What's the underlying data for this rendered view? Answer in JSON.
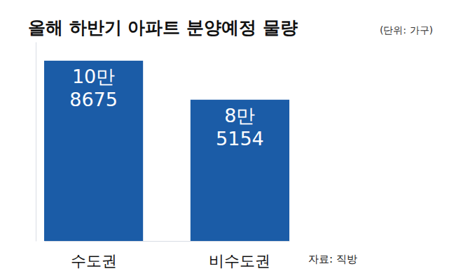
{
  "chart_data": {
    "type": "bar",
    "title": "올해 하반기 아파트 분양예정 물량",
    "subtitle": "(단위: 가구)",
    "source": "자료: 직방",
    "categories": [
      "수도권",
      "비수도권"
    ],
    "values": [
      108675,
      85154
    ],
    "value_labels": [
      "10만 8675",
      "8만 5154"
    ],
    "color": "#1b5ca7",
    "ylim": [
      0,
      120000
    ],
    "grid": false,
    "data_labels": true,
    "tick_labels": "x"
  }
}
